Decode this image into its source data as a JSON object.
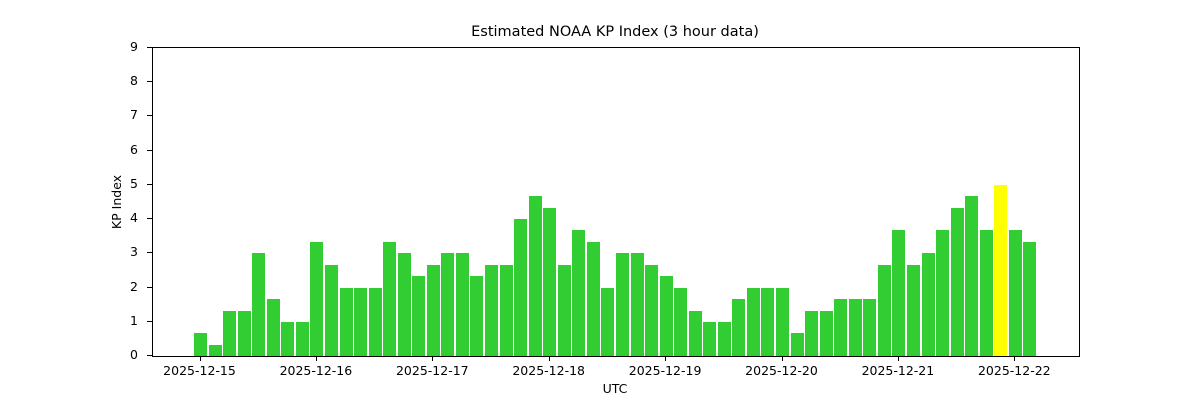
{
  "figure": {
    "background": "#ffffff",
    "axis_color": "#000000"
  },
  "chart_data": {
    "type": "bar",
    "title": "Estimated NOAA KP Index (3 hour data)",
    "xlabel": "UTC",
    "ylabel": "KP Index",
    "ylim": [
      0,
      9
    ],
    "yticks": [
      0,
      1,
      2,
      3,
      4,
      5,
      6,
      7,
      8,
      9
    ],
    "grid": false,
    "legend": "none",
    "start_utc": "2025-12-15 00:00",
    "step_hours": 3,
    "values": [
      0.67,
      0.33,
      1.33,
      1.33,
      3.0,
      1.67,
      1.0,
      1.0,
      3.33,
      2.67,
      2.0,
      2.0,
      2.0,
      3.33,
      3.0,
      2.33,
      2.67,
      3.0,
      3.0,
      2.33,
      2.67,
      2.67,
      4.0,
      4.67,
      4.33,
      2.67,
      3.67,
      3.33,
      2.0,
      3.0,
      3.0,
      2.67,
      2.33,
      2.0,
      1.33,
      1.0,
      1.0,
      1.67,
      2.0,
      2.0,
      2.0,
      0.67,
      1.33,
      1.33,
      1.67,
      1.67,
      1.67,
      2.67,
      3.67,
      2.67,
      3.0,
      3.67,
      4.33,
      4.67,
      3.67,
      5.0,
      3.67,
      3.33
    ],
    "bar_color_default": "#32cd32",
    "bar_color_highlight": "#ffff00",
    "highlight_indices": [
      55
    ],
    "xticks": [
      {
        "label": "2025-12-15",
        "bar_index": 0
      },
      {
        "label": "2025-12-16",
        "bar_index": 8
      },
      {
        "label": "2025-12-17",
        "bar_index": 16
      },
      {
        "label": "2025-12-18",
        "bar_index": 24
      },
      {
        "label": "2025-12-19",
        "bar_index": 32
      },
      {
        "label": "2025-12-20",
        "bar_index": 40
      },
      {
        "label": "2025-12-21",
        "bar_index": 48
      },
      {
        "label": "2025-12-22",
        "bar_index": 56
      }
    ]
  }
}
